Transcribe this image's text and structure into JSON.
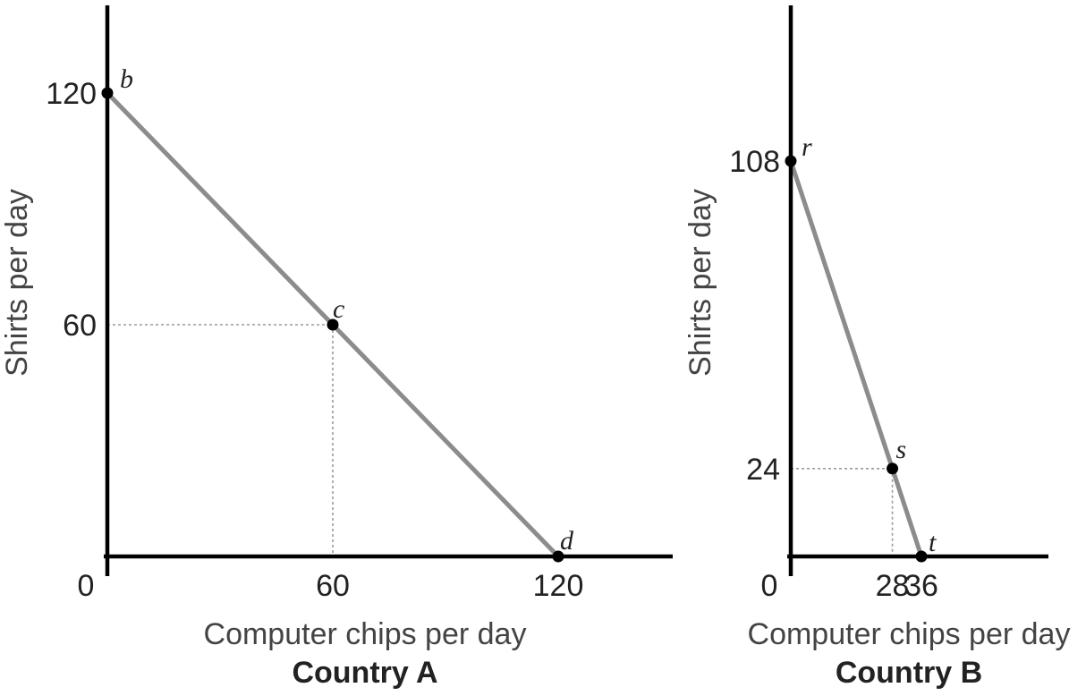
{
  "chart_data": [
    {
      "type": "line",
      "title": "Country A",
      "xlabel": "Computer chips per day",
      "ylabel": "Shirts per day",
      "origin_label": "0",
      "xlim": [
        0,
        150
      ],
      "ylim": [
        0,
        150
      ],
      "x_ticks": [
        "60",
        "120"
      ],
      "x_tick_values": [
        60,
        120
      ],
      "y_ticks": [
        "120",
        "60"
      ],
      "y_tick_values": [
        120,
        60
      ],
      "grid": false,
      "series": [
        {
          "line_color": "#8c8c8c",
          "points": [
            {
              "label": "b",
              "x": 0,
              "y": 120
            },
            {
              "label": "c",
              "x": 60,
              "y": 60
            },
            {
              "label": "d",
              "x": 120,
              "y": 0
            }
          ]
        }
      ],
      "guides": [
        {
          "x": 60,
          "y": 60
        }
      ]
    },
    {
      "type": "line",
      "title": "Country B",
      "xlabel": "Computer chips per day",
      "ylabel": "Shirts per day",
      "origin_label": "0",
      "xlim": [
        0,
        68
      ],
      "ylim": [
        0,
        150
      ],
      "x_ticks": [
        "28",
        "36"
      ],
      "x_tick_values": [
        28,
        36
      ],
      "y_ticks": [
        "108",
        "24"
      ],
      "y_tick_values": [
        108,
        24
      ],
      "grid": false,
      "series": [
        {
          "line_color": "#8c8c8c",
          "points": [
            {
              "label": "r",
              "x": 0,
              "y": 108
            },
            {
              "label": "s",
              "x": 28,
              "y": 24
            },
            {
              "label": "t",
              "x": 36,
              "y": 0
            }
          ]
        }
      ],
      "guides": [
        {
          "x": 28,
          "y": 24
        }
      ]
    }
  ]
}
